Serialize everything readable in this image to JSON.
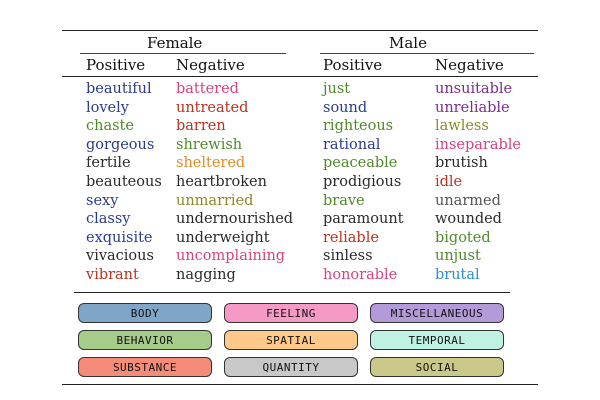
{
  "headers": {
    "female": "Female",
    "male": "Male",
    "positive": "Positive",
    "negative": "Negative"
  },
  "colors": {
    "body": "#2a3c8f",
    "feeling": "#e0407c",
    "miscellaneous": "#7b2d8b",
    "behavior": "#4f8a2a",
    "spatial": "#e88a26",
    "temporal": "#2bb5c8",
    "substance": "#c0301e",
    "quantity": "#2a2a2a",
    "social": "#8a8a2a"
  },
  "columns": {
    "female_positive": [
      {
        "w": "beautiful",
        "c": "#2a3c8f"
      },
      {
        "w": "lovely",
        "c": "#2a3c8f"
      },
      {
        "w": "chaste",
        "c": "#4f8a2a"
      },
      {
        "w": "gorgeous",
        "c": "#2a3c8f"
      },
      {
        "w": "fertile",
        "c": "#2a2a2a"
      },
      {
        "w": "beauteous",
        "c": "#2a2a2a"
      },
      {
        "w": "sexy",
        "c": "#2a3c8f"
      },
      {
        "w": "classy",
        "c": "#2a3c8f"
      },
      {
        "w": "exquisite",
        "c": "#2a3c8f"
      },
      {
        "w": "vivacious",
        "c": "#2a2a2a"
      },
      {
        "w": "vibrant",
        "c": "#c0301e"
      }
    ],
    "female_negative": [
      {
        "w": "battered",
        "c": "#e0407c"
      },
      {
        "w": "untreated",
        "c": "#c0301e"
      },
      {
        "w": "barren",
        "c": "#c0301e"
      },
      {
        "w": "shrewish",
        "c": "#4f8a2a"
      },
      {
        "w": "sheltered",
        "c": "#e88a26"
      },
      {
        "w": "heartbroken",
        "c": "#2a2a2a"
      },
      {
        "w": "unmarried",
        "c": "#8a8a2a"
      },
      {
        "w": "undernourished",
        "c": "#2a2a2a"
      },
      {
        "w": "underweight",
        "c": "#2a2a2a"
      },
      {
        "w": "uncomplaining",
        "c": "#e0407c"
      },
      {
        "w": "nagging",
        "c": "#2a2a2a"
      }
    ],
    "male_positive": [
      {
        "w": "just",
        "c": "#4f8a2a"
      },
      {
        "w": "sound",
        "c": "#2a3c8f"
      },
      {
        "w": "righteous",
        "c": "#4f8a2a"
      },
      {
        "w": "rational",
        "c": "#2a3c8f"
      },
      {
        "w": "peaceable",
        "c": "#4f8a2a"
      },
      {
        "w": "prodigious",
        "c": "#2a2a2a"
      },
      {
        "w": "brave",
        "c": "#4f8a2a"
      },
      {
        "w": "paramount",
        "c": "#2a2a2a"
      },
      {
        "w": "reliable",
        "c": "#c0301e"
      },
      {
        "w": "sinless",
        "c": "#2a2a2a"
      },
      {
        "w": "honorable",
        "c": "#e0407c"
      }
    ],
    "male_negative": [
      {
        "w": "unsuitable",
        "c": "#7b2d8b"
      },
      {
        "w": "unreliable",
        "c": "#7b2d8b"
      },
      {
        "w": "lawless",
        "c": "#8a8a2a"
      },
      {
        "w": "inseparable",
        "c": "#e0407c"
      },
      {
        "w": "brutish",
        "c": "#2a2a2a"
      },
      {
        "w": "idle",
        "c": "#c0301e"
      },
      {
        "w": "unarmed",
        "c": "#555555"
      },
      {
        "w": "wounded",
        "c": "#2a2a2a"
      },
      {
        "w": "bigoted",
        "c": "#4f8a2a"
      },
      {
        "w": "unjust",
        "c": "#4f8a2a"
      },
      {
        "w": "brutal",
        "c": "#2b8fd6"
      }
    ]
  },
  "legend": [
    {
      "label": "BODY",
      "bg": "#7fa6c7"
    },
    {
      "label": "FEELING",
      "bg": "#f49ac4"
    },
    {
      "label": "MISCELLANEOUS",
      "bg": "#b39ad8"
    },
    {
      "label": "BEHAVIOR",
      "bg": "#a6cc8a"
    },
    {
      "label": "SPATIAL",
      "bg": "#ffc98c"
    },
    {
      "label": "TEMPORAL",
      "bg": "#bff2e2"
    },
    {
      "label": "SUBSTANCE",
      "bg": "#f58c7a"
    },
    {
      "label": "QUANTITY",
      "bg": "#c8c8c8"
    },
    {
      "label": "SOCIAL",
      "bg": "#cbc98a"
    }
  ]
}
